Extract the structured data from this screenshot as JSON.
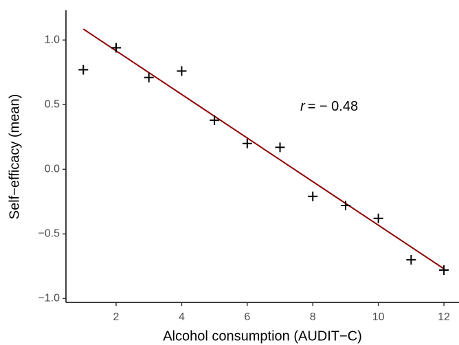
{
  "chart_data": {
    "type": "scatter",
    "xlabel": "Alcohol consumption (AUDIT−C)",
    "ylabel": "Self−efficacy (mean)",
    "x": [
      1,
      2,
      3,
      4,
      5,
      6,
      7,
      8,
      9,
      10,
      11,
      12
    ],
    "series": [
      {
        "color": "#000000",
        "values": [
          0.77,
          0.94,
          0.71,
          0.76,
          0.38,
          0.2,
          0.17,
          -0.21,
          -0.28,
          -0.38,
          -0.7,
          -0.78
        ]
      }
    ],
    "trend": {
      "x": [
        1,
        12
      ],
      "y": [
        1.085,
        -0.77
      ],
      "color": "#8b0000"
    },
    "annotation": [
      "r",
      "= − 0.48"
    ],
    "annotation_pos": [
      8.5,
      0.48
    ],
    "xlim": [
      0.47,
      12.46
    ],
    "ylim": [
      -1.03,
      1.23
    ],
    "xticks": [
      2,
      4,
      6,
      8,
      10,
      12
    ],
    "yticks": [
      {
        "value": -1.0,
        "label": "−1.0"
      },
      {
        "value": -0.5,
        "label": "−0.5"
      },
      {
        "value": 0.0,
        "label": "0.0"
      },
      0.5,
      {
        "value": 1.0,
        "label": "1.0"
      }
    ],
    "grid": false
  }
}
